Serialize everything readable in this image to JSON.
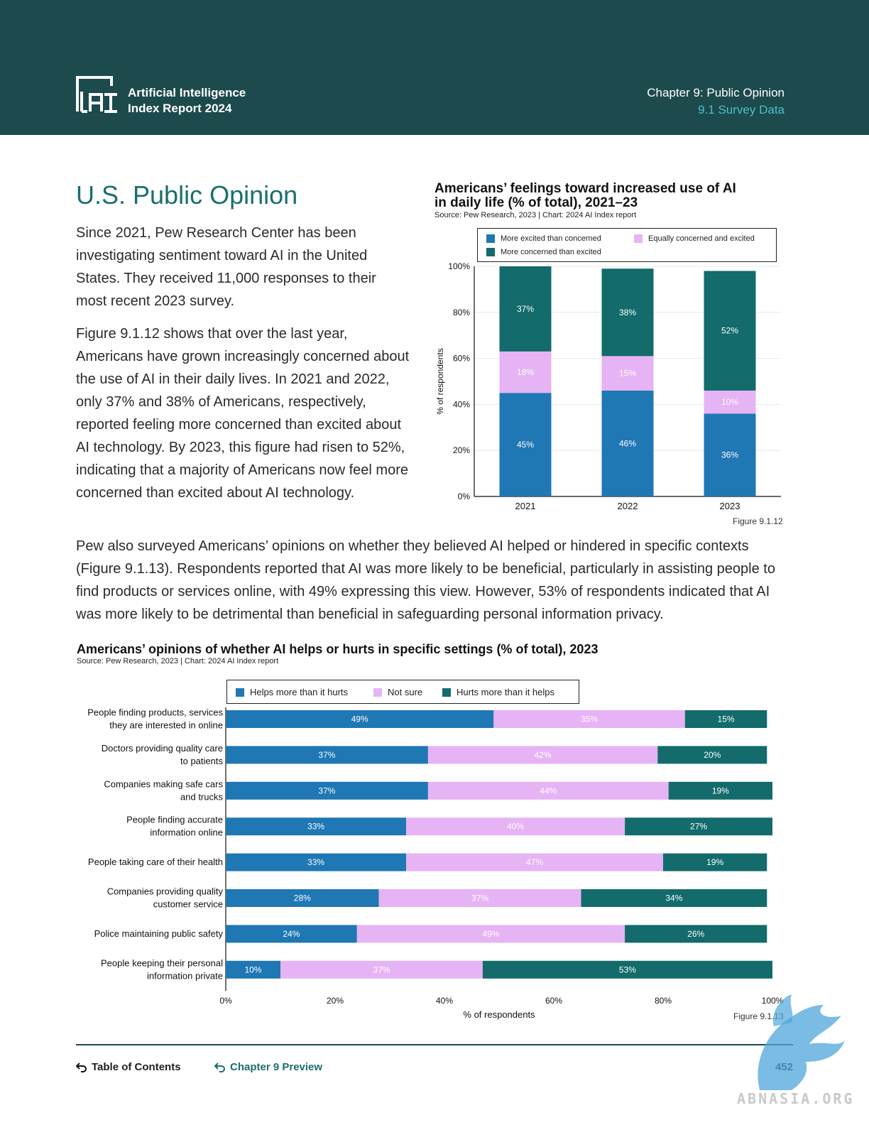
{
  "header": {
    "report_title_line1": "Artificial Intelligence",
    "report_title_line2": "Index Report 2024",
    "chapter": "Chapter 9: Public Opinion",
    "section": "9.1 Survey Data",
    "logo_icon": "ai-index-logo-icon"
  },
  "section_title": "U.S. Public Opinion",
  "paragraphs": {
    "p1": "Since 2021, Pew Research Center has been investigating sentiment toward AI in the United States. They received 11,000 responses to their most recent 2023 survey.",
    "p2": "Figure 9.1.12 shows that over the last year, Americans have grown increasingly concerned about the use of AI in their daily lives. In 2021 and 2022, only 37% and 38% of Americans, respectively, reported feeling more concerned than excited about AI technology. By 2023, this figure had risen to 52%, indicating that a majority of Americans now feel more concerned than excited about AI technology.",
    "p3": "Pew also surveyed Americans’ opinions on whether they believed AI helped or hindered in specific contexts (Figure 9.1.13). Respondents reported that AI was more likely to be beneficial, particularly in assisting people to find products or services online, with 49% expressing this view. However, 53% of respondents indicated that AI was more likely to be detrimental than beneficial in safeguarding personal information privacy."
  },
  "chart_data": [
    {
      "type": "bar",
      "stacked": true,
      "orientation": "vertical",
      "title_line1": "Americans’ feelings toward increased use of AI",
      "title_line2": "in daily life (% of total), 2021–23",
      "source": "Source: Pew Research, 2023 | Chart: 2024 AI Index report",
      "figure_label": "Figure 9.1.12",
      "ylabel": "% of respondents",
      "xlabel": "",
      "ylim": [
        0,
        100
      ],
      "yticks": [
        "0%",
        "20%",
        "40%",
        "60%",
        "80%",
        "100%"
      ],
      "grid": true,
      "legend_position": "top",
      "categories": [
        "2021",
        "2022",
        "2023"
      ],
      "series": [
        {
          "name": "More excited than concerned",
          "color": "#1f77b4",
          "label_color": "#ffffff",
          "values": [
            45,
            46,
            36
          ]
        },
        {
          "name": "Equally concerned and excited",
          "color": "#e6b3f5",
          "label_color": "#ffffff",
          "values": [
            18,
            15,
            10
          ]
        },
        {
          "name": "More concerned than excited",
          "color": "#136b6b",
          "label_color": "#ffffff",
          "values": [
            37,
            38,
            52
          ]
        }
      ]
    },
    {
      "type": "bar",
      "stacked": true,
      "orientation": "horizontal",
      "title": "Americans’ opinions of whether AI helps or hurts in specific settings (% of total), 2023",
      "source": "Source: Pew Research, 2023 | Chart: 2024 AI Index report",
      "figure_label": "Figure 9.1.13",
      "xlabel": "% of respondents",
      "xlim": [
        0,
        100
      ],
      "xticks": [
        "0%",
        "20%",
        "40%",
        "60%",
        "80%",
        "100%"
      ],
      "legend_position": "top",
      "categories": [
        [
          "People finding products, services",
          "they are interested in online"
        ],
        [
          "Doctors providing quality care",
          "to patients"
        ],
        [
          "Companies making safe cars",
          "and trucks"
        ],
        [
          "People finding accurate",
          "information online"
        ],
        [
          "People taking care of their health"
        ],
        [
          "Companies providing quality",
          "customer service"
        ],
        [
          "Police maintaining public safety"
        ],
        [
          "People keeping their personal",
          "information private"
        ]
      ],
      "series": [
        {
          "name": "Helps more than it hurts",
          "color": "#1f77b4",
          "label_color": "#ffffff",
          "values": [
            49,
            37,
            37,
            33,
            33,
            28,
            24,
            10
          ]
        },
        {
          "name": "Not sure",
          "color": "#e6b3f5",
          "label_color": "#ffffff",
          "values": [
            35,
            42,
            44,
            40,
            47,
            37,
            49,
            37
          ]
        },
        {
          "name": "Hurts more than it helps",
          "color": "#136b6b",
          "label_color": "#ffffff",
          "values": [
            15,
            20,
            19,
            27,
            19,
            34,
            26,
            53
          ]
        }
      ]
    }
  ],
  "footer": {
    "toc": "Table of Contents",
    "chapter_preview": "Chapter 9 Preview",
    "page": "452",
    "toc_icon": "return-arrow-icon",
    "preview_icon": "return-arrow-icon"
  },
  "watermark": {
    "text": "ABNASIA.ORG",
    "icon": "griffin-watermark-icon"
  }
}
